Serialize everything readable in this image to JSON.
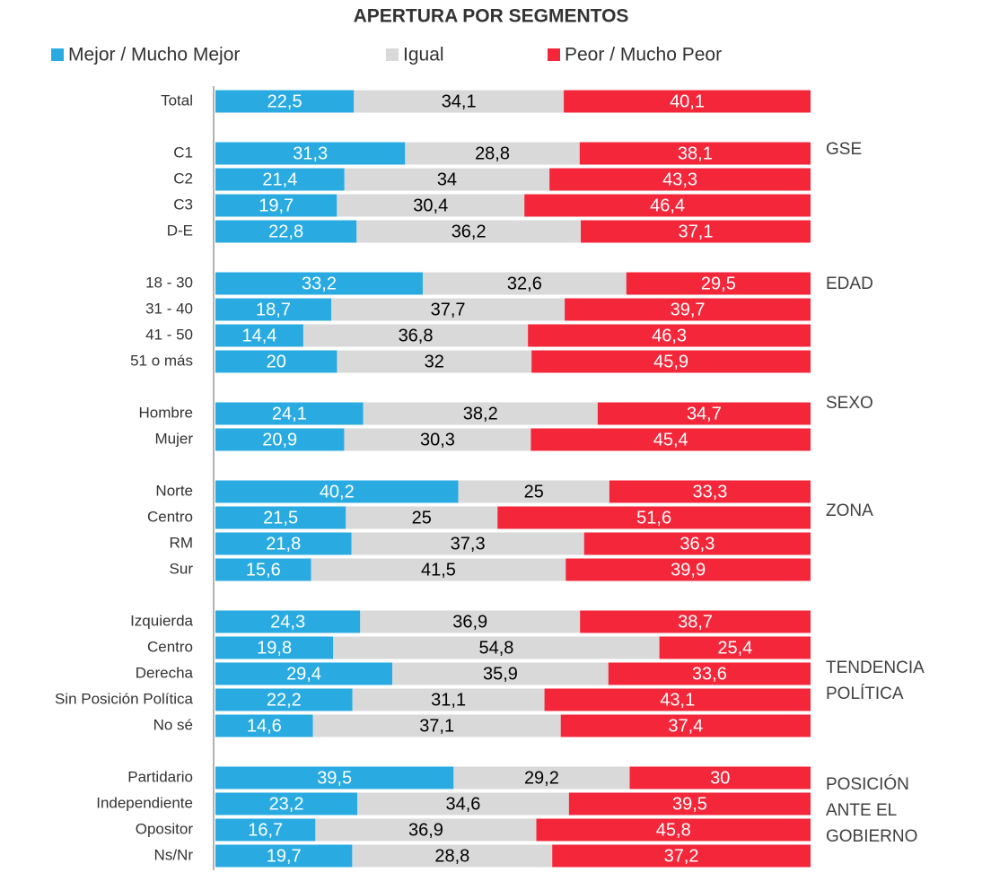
{
  "chart_data": {
    "type": "stacked-bar-100",
    "orientation": "horizontal",
    "title": "APERTURA POR SEGMENTOS",
    "categories": [
      "Total",
      null,
      "C1",
      "C2",
      "C3",
      "D-E",
      null,
      "18 - 30",
      "31 - 40",
      "41 - 50",
      "51 o más",
      null,
      "Hombre",
      "Mujer",
      null,
      "Norte",
      "Centro",
      "RM",
      "Sur",
      null,
      "Izquierda",
      "Centro",
      "Derecha",
      "Sin Posición Política",
      "No sé",
      null,
      "Partidario",
      "Independiente",
      "Opositor",
      "Ns/Nr"
    ],
    "series": [
      {
        "name": "Mejor / Mucho Mejor",
        "color": "#29abe2",
        "label_color": "#ffffff",
        "values": [
          22.5,
          null,
          31.3,
          21.4,
          19.7,
          22.8,
          null,
          33.2,
          18.7,
          14.4,
          20,
          null,
          24.1,
          20.9,
          null,
          40.2,
          21.5,
          21.8,
          15.6,
          null,
          24.3,
          19.8,
          29.4,
          22.2,
          14.6,
          null,
          39.5,
          23.2,
          16.7,
          19.7
        ],
        "value_labels": [
          "22,5",
          null,
          "31,3",
          "21,4",
          "19,7",
          "22,8",
          null,
          "33,2",
          "18,7",
          "14,4",
          "20",
          null,
          "24,1",
          "20,9",
          null,
          "40,2",
          "21,5",
          "21,8",
          "15,6",
          null,
          "24,3",
          "19,8",
          "29,4",
          "22,2",
          "14,6",
          null,
          "39,5",
          "23,2",
          "16,7",
          "19,7"
        ]
      },
      {
        "name": "Igual",
        "color": "#d9d9d9",
        "label_color": "#000000",
        "values": [
          34.1,
          null,
          28.8,
          34,
          30.4,
          36.2,
          null,
          32.6,
          37.7,
          36.8,
          32,
          null,
          38.2,
          30.3,
          null,
          25,
          25,
          37.3,
          41.5,
          null,
          36.9,
          54.8,
          35.9,
          31.1,
          37.1,
          null,
          29.2,
          34.6,
          36.9,
          28.8
        ],
        "value_labels": [
          "34,1",
          null,
          "28,8",
          "34",
          "30,4",
          "36,2",
          null,
          "32,6",
          "37,7",
          "36,8",
          "32",
          null,
          "38,2",
          "30,3",
          null,
          "25",
          "25",
          "37,3",
          "41,5",
          null,
          "36,9",
          "54,8",
          "35,9",
          "31,1",
          "37,1",
          null,
          "29,2",
          "34,6",
          "36,9",
          "28,8"
        ]
      },
      {
        "name": "Peor / Mucho Peor",
        "color": "#f4263a",
        "label_color": "#ffffff",
        "values": [
          40.1,
          null,
          38.1,
          43.3,
          46.4,
          37.1,
          null,
          29.5,
          39.7,
          46.3,
          45.9,
          null,
          34.7,
          45.4,
          null,
          33.3,
          51.6,
          36.3,
          39.9,
          null,
          38.7,
          25.4,
          33.6,
          43.1,
          37.4,
          null,
          30,
          39.5,
          45.8,
          37.2
        ],
        "value_labels": [
          "40,1",
          null,
          "38,1",
          "43,3",
          "46,4",
          "37,1",
          null,
          "29,5",
          "39,7",
          "46,3",
          "45,9",
          null,
          "34,7",
          "45,4",
          null,
          "33,3",
          "51,6",
          "36,3",
          "39,9",
          null,
          "38,7",
          "25,4",
          "33,6",
          "43,1",
          "37,4",
          null,
          "30",
          "39,5",
          "45,8",
          "37,2"
        ]
      }
    ],
    "annotations": [
      [
        "GSE"
      ],
      [
        "EDAD"
      ],
      [
        "SEXO"
      ],
      [
        "ZONA"
      ],
      [
        "TENDENCIA",
        "POLÍTICA"
      ],
      [
        "POSICIÓN",
        "ANTE EL",
        "GOBIERNO"
      ]
    ]
  }
}
